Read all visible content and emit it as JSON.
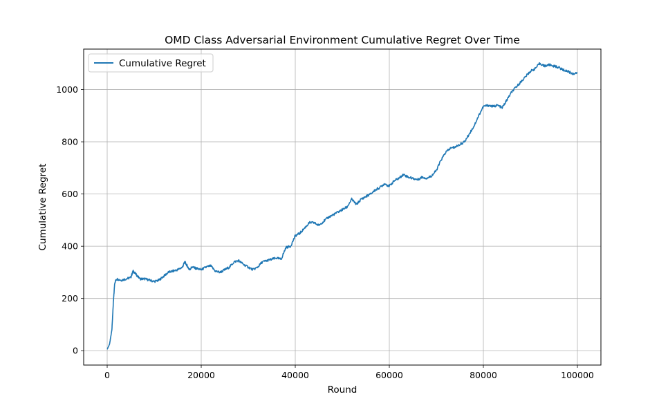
{
  "chart_data": {
    "type": "line",
    "title": "OMD Class Adversarial Environment Cumulative Regret Over Time",
    "xlabel": "Round",
    "ylabel": "Cumulative Regret",
    "xlim": [
      -5000,
      105000
    ],
    "ylim": [
      -55,
      1155
    ],
    "xticks": [
      0,
      20000,
      40000,
      60000,
      80000,
      100000
    ],
    "yticks": [
      0,
      200,
      400,
      600,
      800,
      1000
    ],
    "grid": true,
    "legend_position": "top-left",
    "colors": {
      "line": "#1f77b4",
      "grid": "#b0b0b0",
      "axes": "#000000"
    },
    "series": [
      {
        "name": "Cumulative Regret",
        "x": [
          0,
          500,
          1000,
          1300,
          1600,
          2000,
          3000,
          4000,
          5000,
          5500,
          6000,
          7000,
          8000,
          9000,
          10000,
          11000,
          12000,
          13000,
          14000,
          15000,
          16000,
          16500,
          17000,
          17500,
          18000,
          19000,
          20000,
          21000,
          22000,
          23000,
          24000,
          25000,
          26000,
          27000,
          28000,
          29000,
          30000,
          31000,
          32000,
          33000,
          34000,
          35000,
          36000,
          37000,
          38000,
          39000,
          40000,
          41000,
          42000,
          43000,
          44000,
          45000,
          46000,
          47000,
          48000,
          49000,
          50000,
          51000,
          52000,
          53000,
          54000,
          55000,
          56000,
          57000,
          58000,
          59000,
          60000,
          61000,
          62000,
          63000,
          64000,
          65000,
          66000,
          67000,
          68000,
          69000,
          70000,
          71000,
          72000,
          73000,
          74000,
          75000,
          76000,
          77000,
          78000,
          79000,
          80000,
          81000,
          82000,
          83000,
          84000,
          85000,
          86000,
          87000,
          88000,
          89000,
          90000,
          91000,
          92000,
          93000,
          94000,
          95000,
          96000,
          97000,
          98000,
          99000,
          100000
        ],
        "values": [
          5,
          25,
          80,
          180,
          260,
          275,
          270,
          275,
          280,
          305,
          295,
          275,
          275,
          270,
          265,
          270,
          285,
          300,
          305,
          310,
          320,
          340,
          325,
          310,
          320,
          315,
          310,
          320,
          325,
          305,
          300,
          310,
          320,
          340,
          345,
          330,
          320,
          310,
          320,
          340,
          345,
          350,
          355,
          350,
          395,
          400,
          440,
          450,
          470,
          490,
          490,
          480,
          495,
          510,
          520,
          530,
          540,
          550,
          580,
          560,
          580,
          590,
          600,
          615,
          625,
          640,
          630,
          650,
          660,
          675,
          665,
          660,
          655,
          665,
          660,
          670,
          690,
          730,
          760,
          775,
          780,
          790,
          800,
          830,
          860,
          900,
          935,
          940,
          935,
          940,
          930,
          960,
          990,
          1010,
          1030,
          1050,
          1070,
          1080,
          1100,
          1090,
          1095,
          1090,
          1085,
          1075,
          1070,
          1060,
          1065
        ]
      }
    ]
  }
}
